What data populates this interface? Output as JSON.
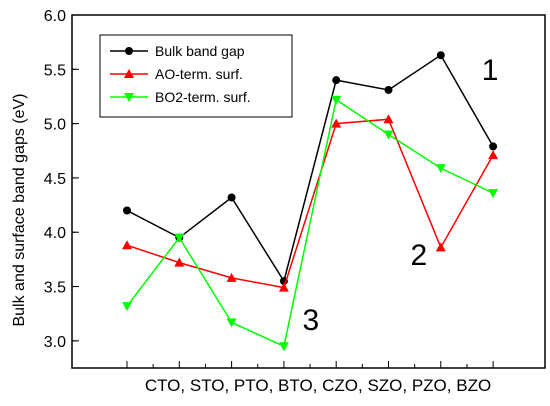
{
  "chart_data": {
    "type": "line",
    "categories": [
      "CTO",
      "STO",
      "PTO",
      "BTO",
      "CZO",
      "SZO",
      "PZO",
      "BZO"
    ],
    "category_axis_text": "CTO, STO, PTO, BTO, CZO, SZO, PZO, BZO",
    "ylabel": "Bulk and surface band gaps (eV)",
    "xlabel": "",
    "ylim": [
      2.75,
      6.0
    ],
    "yticks": [
      "3.0",
      "3.5",
      "4.0",
      "4.5",
      "5.0",
      "5.5",
      "6.0"
    ],
    "grid": false,
    "legend_position": "top-left",
    "series": [
      {
        "name": "Bulk band gap",
        "color": "#000000",
        "marker": "circle",
        "values": [
          4.2,
          3.95,
          4.32,
          3.55,
          5.4,
          5.31,
          5.63,
          4.79
        ]
      },
      {
        "name": "AO-term. surf.",
        "color": "#ff0000",
        "marker": "triangle-up",
        "values": [
          3.88,
          3.72,
          3.58,
          3.49,
          5.0,
          5.04,
          3.86,
          4.71
        ]
      },
      {
        "name": "BO2-term. surf.",
        "color": "#00ff00",
        "marker": "triangle-down",
        "values": [
          3.32,
          3.95,
          3.17,
          2.95,
          5.22,
          4.9,
          4.59,
          4.36
        ]
      }
    ],
    "annotations": [
      {
        "text": "1",
        "x": "BZO",
        "y": 5.4
      },
      {
        "text": "2",
        "x": "PZO",
        "y": 3.7
      },
      {
        "text": "3",
        "x": "BTO",
        "y": 3.1
      }
    ]
  }
}
